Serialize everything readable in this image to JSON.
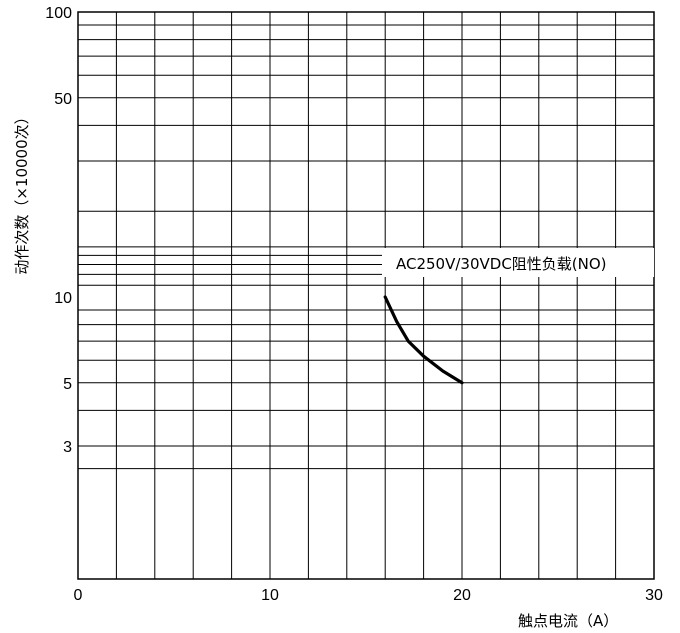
{
  "chart_data": {
    "type": "line",
    "xlabel": "触点电流（A）",
    "ylabel": "动作次数（×10000次）",
    "xlim": [
      0,
      30
    ],
    "ylim": [
      2,
      100
    ],
    "y_scale": "log",
    "grid": true,
    "x_ticks": [
      "0",
      "10",
      "20",
      "30"
    ],
    "y_ticks": [
      {
        "value": 100,
        "label": "100"
      },
      {
        "value": 50,
        "label": "50"
      },
      {
        "value": 10,
        "label": "10"
      },
      {
        "value": 5,
        "label": "5"
      },
      {
        "value": 3,
        "label": "3"
      }
    ],
    "series": [
      {
        "name": "AC250V/30VDC阻性负载(NO)",
        "x": [
          16,
          16.6,
          17.2,
          18.0,
          19.0,
          20.0
        ],
        "y": [
          10,
          8.2,
          7.0,
          6.2,
          5.5,
          5.0
        ]
      }
    ],
    "line_color": "#000000"
  }
}
